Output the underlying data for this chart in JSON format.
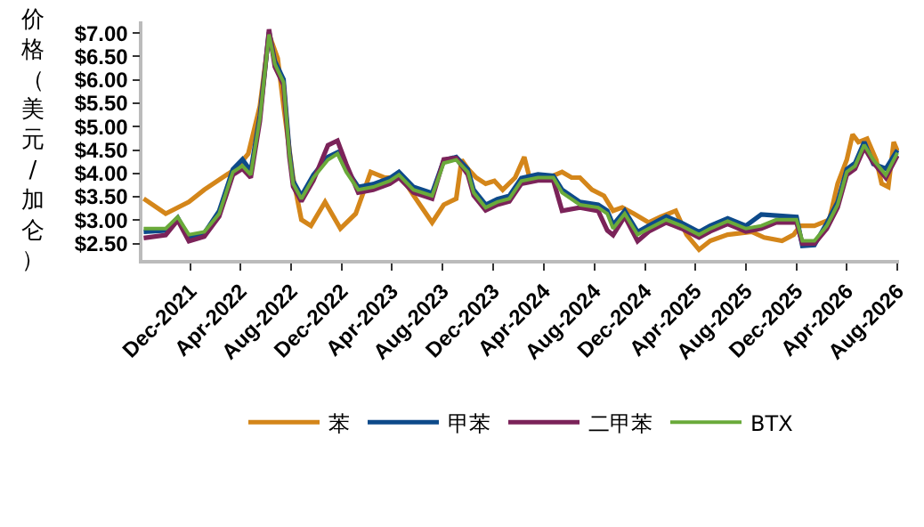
{
  "chart_data": {
    "type": "line",
    "ylabel": "价格（美元/加仑）",
    "x": [
      "2021-08-11",
      "2021-10-03",
      "2021-11-01",
      "2021-11-28",
      "2022-01-04",
      "2022-02-09",
      "2022-03-14",
      "2022-04-06",
      "2022-04-26",
      "2022-05-18",
      "2022-06-09",
      "2022-06-23",
      "2022-07-14",
      "2022-07-28",
      "2022-08-06",
      "2022-08-26",
      "2022-09-24",
      "2022-10-29",
      "2022-11-21",
      "2022-12-12",
      "2023-01-10",
      "2023-02-15",
      "2023-03-27",
      "2023-04-18",
      "2023-05-23",
      "2023-07-07",
      "2023-08-04",
      "2023-09-03",
      "2023-10-01",
      "2023-10-15",
      "2023-11-13",
      "2023-12-11",
      "2024-01-09",
      "2024-02-07",
      "2024-03-18",
      "2024-04-24",
      "2024-05-15",
      "2024-06-27",
      "2024-08-10",
      "2024-09-01",
      "2024-09-15",
      "2024-10-13",
      "2024-11-13",
      "2024-12-10",
      "2025-01-21",
      "2025-02-27",
      "2025-04-10",
      "2025-05-07",
      "2025-06-18",
      "2025-08-01",
      "2025-09-07",
      "2025-10-13",
      "2025-12-01",
      "2025-12-15",
      "2026-01-13",
      "2026-02-12",
      "2026-03-10",
      "2026-04-01",
      "2026-04-21",
      "2026-05-13",
      "2026-06-04",
      "2026-07-04",
      "2026-08-01"
    ],
    "series": [
      {
        "name": "苯",
        "color": "#d4861a",
        "x": [
          "2021-08-11",
          "2021-10-03",
          "2021-11-28",
          "2022-01-04",
          "2022-03-21",
          "2022-04-20",
          "2022-05-18",
          "2022-06-09",
          "2022-06-30",
          "2022-07-14",
          "2022-08-06",
          "2022-08-26",
          "2022-09-18",
          "2022-10-22",
          "2022-11-28",
          "2023-01-04",
          "2023-02-09",
          "2023-03-14",
          "2023-04-26",
          "2023-05-24",
          "2023-07-07",
          "2023-08-04",
          "2023-09-03",
          "2023-09-16",
          "2023-10-01",
          "2023-10-21",
          "2023-11-13",
          "2023-12-04",
          "2023-12-24",
          "2024-01-23",
          "2024-02-14",
          "2024-02-27",
          "2024-04-10",
          "2024-05-15",
          "2024-06-07",
          "2024-06-27",
          "2024-07-26",
          "2024-08-24",
          "2024-09-15",
          "2024-10-07",
          "2024-11-04",
          "2024-12-10",
          "2025-01-07",
          "2025-02-13",
          "2025-03-11",
          "2025-04-10",
          "2025-05-07",
          "2025-06-18",
          "2025-08-15",
          "2025-09-14",
          "2025-10-27",
          "2025-11-24",
          "2025-12-10",
          "2026-01-13",
          "2026-02-18",
          "2026-03-10",
          "2026-04-01",
          "2026-04-15",
          "2026-04-29",
          "2026-05-20",
          "2026-06-11",
          "2026-06-24",
          "2026-07-10",
          "2026-07-23",
          "2026-08-01"
        ],
        "values": [
          3.46,
          3.14,
          3.39,
          3.65,
          4.1,
          4.42,
          5.44,
          6.97,
          6.46,
          5.44,
          3.91,
          3.01,
          2.88,
          3.39,
          2.82,
          3.14,
          4.03,
          3.91,
          3.91,
          3.52,
          2.95,
          3.33,
          3.46,
          4.29,
          4.1,
          3.91,
          3.78,
          3.84,
          3.65,
          3.91,
          4.35,
          3.9,
          3.9,
          4.03,
          3.91,
          3.91,
          3.65,
          3.52,
          3.2,
          3.27,
          3.14,
          2.95,
          3.07,
          3.2,
          2.69,
          2.37,
          2.56,
          2.69,
          2.75,
          2.63,
          2.56,
          2.69,
          2.88,
          2.88,
          3.01,
          3.78,
          4.29,
          4.83,
          4.67,
          4.74,
          4.29,
          3.78,
          3.71,
          4.67,
          4.48
        ]
      },
      {
        "name": "甲苯",
        "color": "#0d4a8a",
        "values": [
          2.75,
          2.78,
          3.05,
          2.62,
          2.72,
          3.2,
          4.09,
          4.3,
          4.05,
          5.24,
          7.02,
          6.4,
          6.01,
          4.48,
          3.84,
          3.52,
          3.97,
          4.35,
          4.45,
          4.09,
          3.71,
          3.77,
          3.9,
          4.03,
          3.71,
          3.58,
          4.28,
          4.35,
          4.09,
          3.65,
          3.33,
          3.45,
          3.52,
          3.9,
          3.98,
          3.95,
          3.65,
          3.39,
          3.33,
          3.2,
          2.9,
          3.2,
          2.75,
          2.88,
          3.08,
          2.94,
          2.75,
          2.88,
          3.04,
          2.88,
          3.12,
          3.1,
          3.07,
          2.45,
          2.47,
          2.94,
          3.39,
          4.09,
          4.22,
          4.67,
          4.2,
          4.1,
          4.5
        ]
      },
      {
        "name": "二甲苯",
        "color": "#7b2359",
        "values": [
          2.62,
          2.68,
          3.0,
          2.55,
          2.65,
          3.08,
          3.97,
          4.1,
          3.91,
          5.12,
          7.08,
          6.28,
          5.89,
          4.36,
          3.72,
          3.4,
          3.85,
          4.6,
          4.7,
          4.2,
          3.59,
          3.65,
          3.78,
          3.91,
          3.59,
          3.46,
          4.3,
          4.33,
          3.97,
          3.53,
          3.21,
          3.33,
          3.4,
          3.78,
          3.85,
          3.85,
          3.2,
          3.27,
          3.2,
          2.78,
          2.68,
          3.08,
          2.55,
          2.76,
          2.95,
          2.82,
          2.63,
          2.76,
          2.92,
          2.76,
          2.82,
          2.95,
          2.95,
          2.5,
          2.5,
          2.82,
          3.27,
          3.97,
          4.1,
          4.55,
          4.23,
          3.91,
          4.38
        ]
      },
      {
        "name": "BTX",
        "color": "#6aaa3a",
        "values": [
          2.82,
          2.82,
          3.07,
          2.69,
          2.75,
          3.14,
          4.03,
          4.16,
          3.97,
          5.18,
          6.97,
          6.34,
          5.95,
          4.42,
          3.78,
          3.46,
          3.91,
          4.29,
          4.42,
          4.03,
          3.65,
          3.71,
          3.84,
          3.97,
          3.65,
          3.52,
          4.22,
          4.29,
          4.03,
          3.59,
          3.27,
          3.39,
          3.46,
          3.84,
          3.91,
          3.91,
          3.59,
          3.33,
          3.27,
          3.14,
          2.82,
          3.14,
          2.69,
          2.82,
          3.01,
          2.88,
          2.69,
          2.82,
          2.98,
          2.82,
          2.88,
          3.01,
          3.01,
          2.56,
          2.56,
          2.88,
          3.33,
          4.03,
          4.16,
          4.61,
          4.29,
          3.97,
          4.44
        ]
      }
    ],
    "xlim": [
      "2021-08-08",
      "2026-08-05"
    ],
    "xticks": [
      {
        "value": "2021-12-01",
        "label": "Dec-2021"
      },
      {
        "value": "2022-04-01",
        "label": "Apr-2022"
      },
      {
        "value": "2022-08-01",
        "label": "Aug-2022"
      },
      {
        "value": "2022-12-01",
        "label": "Dec-2022"
      },
      {
        "value": "2023-04-01",
        "label": "Apr-2023"
      },
      {
        "value": "2023-08-01",
        "label": "Aug-2023"
      },
      {
        "value": "2023-12-01",
        "label": "Dec-2023"
      },
      {
        "value": "2024-04-01",
        "label": "Apr-2024"
      },
      {
        "value": "2024-08-01",
        "label": "Aug-2024"
      },
      {
        "value": "2024-12-01",
        "label": "Dec-2024"
      },
      {
        "value": "2025-04-01",
        "label": "Apr-2025"
      },
      {
        "value": "2025-08-01",
        "label": "Aug-2025"
      },
      {
        "value": "2025-12-01",
        "label": "Dec-2025"
      },
      {
        "value": "2026-04-01",
        "label": "Apr-2026"
      },
      {
        "value": "2026-08-01",
        "label": "Aug-2026"
      }
    ],
    "ylim": [
      2.15,
      7.25
    ],
    "yticks": [
      {
        "value": 2.5,
        "label": "$2.50"
      },
      {
        "value": 3,
        "label": "$3.00"
      },
      {
        "value": 3.5,
        "label": "$3.50"
      },
      {
        "value": 4,
        "label": "$4.00"
      },
      {
        "value": 4.5,
        "label": "$4.50"
      },
      {
        "value": 5,
        "label": "$5.00"
      },
      {
        "value": 5.5,
        "label": "$5.50"
      },
      {
        "value": 6,
        "label": "$6.00"
      },
      {
        "value": 6.5,
        "label": "$6.50"
      },
      {
        "value": 7,
        "label": "$7.00"
      }
    ],
    "grid": false,
    "legend": "bottom",
    "marker": "none",
    "line_style": "solid"
  }
}
